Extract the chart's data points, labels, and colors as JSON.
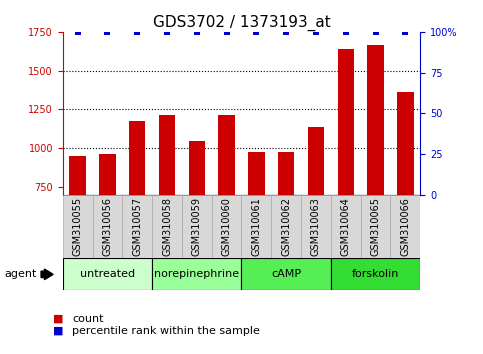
{
  "title": "GDS3702 / 1373193_at",
  "samples": [
    "GSM310055",
    "GSM310056",
    "GSM310057",
    "GSM310058",
    "GSM310059",
    "GSM310060",
    "GSM310061",
    "GSM310062",
    "GSM310063",
    "GSM310064",
    "GSM310065",
    "GSM310066"
  ],
  "counts": [
    950,
    965,
    1175,
    1215,
    1045,
    1215,
    975,
    975,
    1135,
    1640,
    1665,
    1360
  ],
  "percentile": [
    100,
    100,
    100,
    100,
    100,
    100,
    100,
    100,
    100,
    100,
    100,
    100
  ],
  "bar_color": "#cc0000",
  "dot_color": "#0000cc",
  "ylim_left": [
    700,
    1750
  ],
  "ylim_right": [
    0,
    100
  ],
  "yticks_left": [
    750,
    1000,
    1250,
    1500,
    1750
  ],
  "yticks_right": [
    0,
    25,
    50,
    75,
    100
  ],
  "gridlines": [
    1000,
    1250,
    1500
  ],
  "agents": [
    {
      "label": "untreated",
      "indices": [
        0,
        1,
        2
      ],
      "color": "#ccffcc"
    },
    {
      "label": "norepinephrine",
      "indices": [
        3,
        4,
        5
      ],
      "color": "#99ff99"
    },
    {
      "label": "cAMP",
      "indices": [
        6,
        7,
        8
      ],
      "color": "#55ee55"
    },
    {
      "label": "forskolin",
      "indices": [
        9,
        10,
        11
      ],
      "color": "#33dd33"
    }
  ],
  "agent_label": "agent",
  "legend_count_label": "count",
  "legend_pct_label": "percentile rank within the sample",
  "title_fontsize": 11,
  "tick_fontsize": 7,
  "label_fontsize": 7,
  "agent_fontsize": 8,
  "legend_fontsize": 8,
  "bar_bottom": 700,
  "bar_width": 0.55
}
